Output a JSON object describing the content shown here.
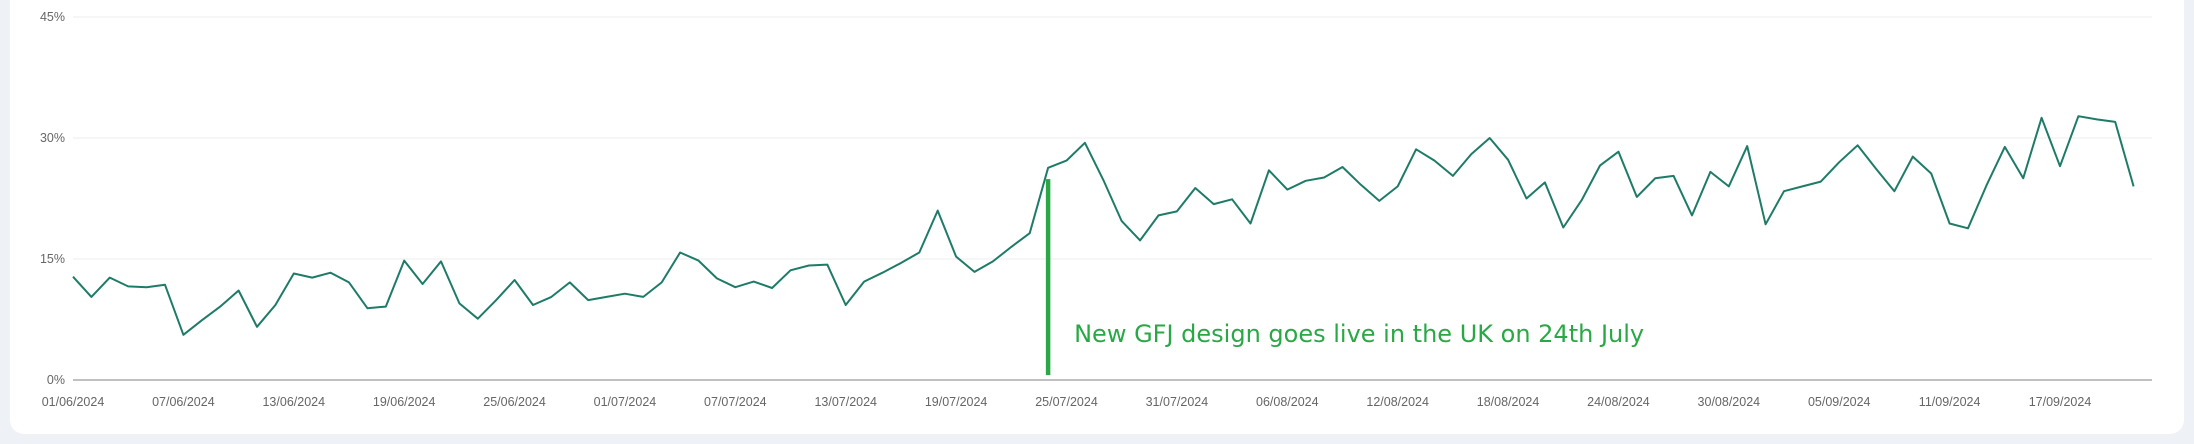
{
  "chart_data": {
    "type": "line",
    "title": "",
    "xlabel": "",
    "ylabel": "",
    "ylim": [
      0,
      45
    ],
    "y_ticks": [
      "0%",
      "15%",
      "30%",
      "45%"
    ],
    "y_tick_values": [
      0,
      15,
      30,
      45
    ],
    "x_tick_labels": [
      "01/06/2024",
      "07/06/2024",
      "13/06/2024",
      "19/06/2024",
      "25/06/2024",
      "01/07/2024",
      "07/07/2024",
      "13/07/2024",
      "19/07/2024",
      "25/07/2024",
      "31/07/2024",
      "06/08/2024",
      "12/08/2024",
      "18/08/2024",
      "24/08/2024",
      "30/08/2024",
      "05/09/2024",
      "11/09/2024",
      "17/09/2024"
    ],
    "grid": true,
    "x_start": "2024-06-01",
    "x_end": "2024-09-22",
    "series": [
      {
        "color": "#1e7b68",
        "values": [
          12.8,
          10.3,
          12.7,
          11.6,
          11.5,
          11.8,
          5.6,
          7.4,
          9.1,
          11.1,
          6.6,
          9.3,
          13.2,
          12.7,
          13.3,
          12.1,
          8.9,
          9.1,
          14.8,
          11.9,
          14.7,
          9.5,
          7.6,
          9.9,
          12.4,
          9.3,
          10.3,
          12.1,
          9.9,
          10.3,
          10.7,
          10.3,
          12.1,
          15.8,
          14.8,
          12.6,
          11.5,
          12.2,
          11.4,
          13.6,
          14.2,
          14.3,
          9.3,
          12.2,
          13.3,
          14.5,
          15.8,
          21.0,
          15.3,
          13.4,
          14.7,
          16.5,
          18.2,
          26.3,
          27.2,
          29.4,
          24.8,
          19.7,
          17.3,
          20.4,
          20.9,
          23.8,
          21.8,
          22.4,
          19.4,
          26.0,
          23.6,
          24.7,
          25.1,
          26.4,
          24.2,
          22.2,
          24.0,
          28.6,
          27.2,
          25.3,
          28.0,
          30.0,
          27.3,
          22.5,
          24.5,
          18.9,
          22.3,
          26.6,
          28.3,
          22.7,
          25.0,
          25.3,
          20.4,
          25.8,
          24.0,
          29.0,
          19.3,
          23.4,
          24.0,
          24.6,
          27.0,
          29.1,
          26.2,
          23.4,
          27.7,
          25.6,
          19.4,
          18.8,
          24.1,
          28.9,
          25.0,
          32.5,
          26.5,
          32.7,
          32.3,
          32.0,
          24.0
        ]
      }
    ],
    "annotations": [
      {
        "date": "2024-07-24",
        "ylim": [
          0.6,
          24.9
        ],
        "color": "#29a845",
        "text": "New GFJ design goes live in the UK on 24th July"
      }
    ]
  }
}
